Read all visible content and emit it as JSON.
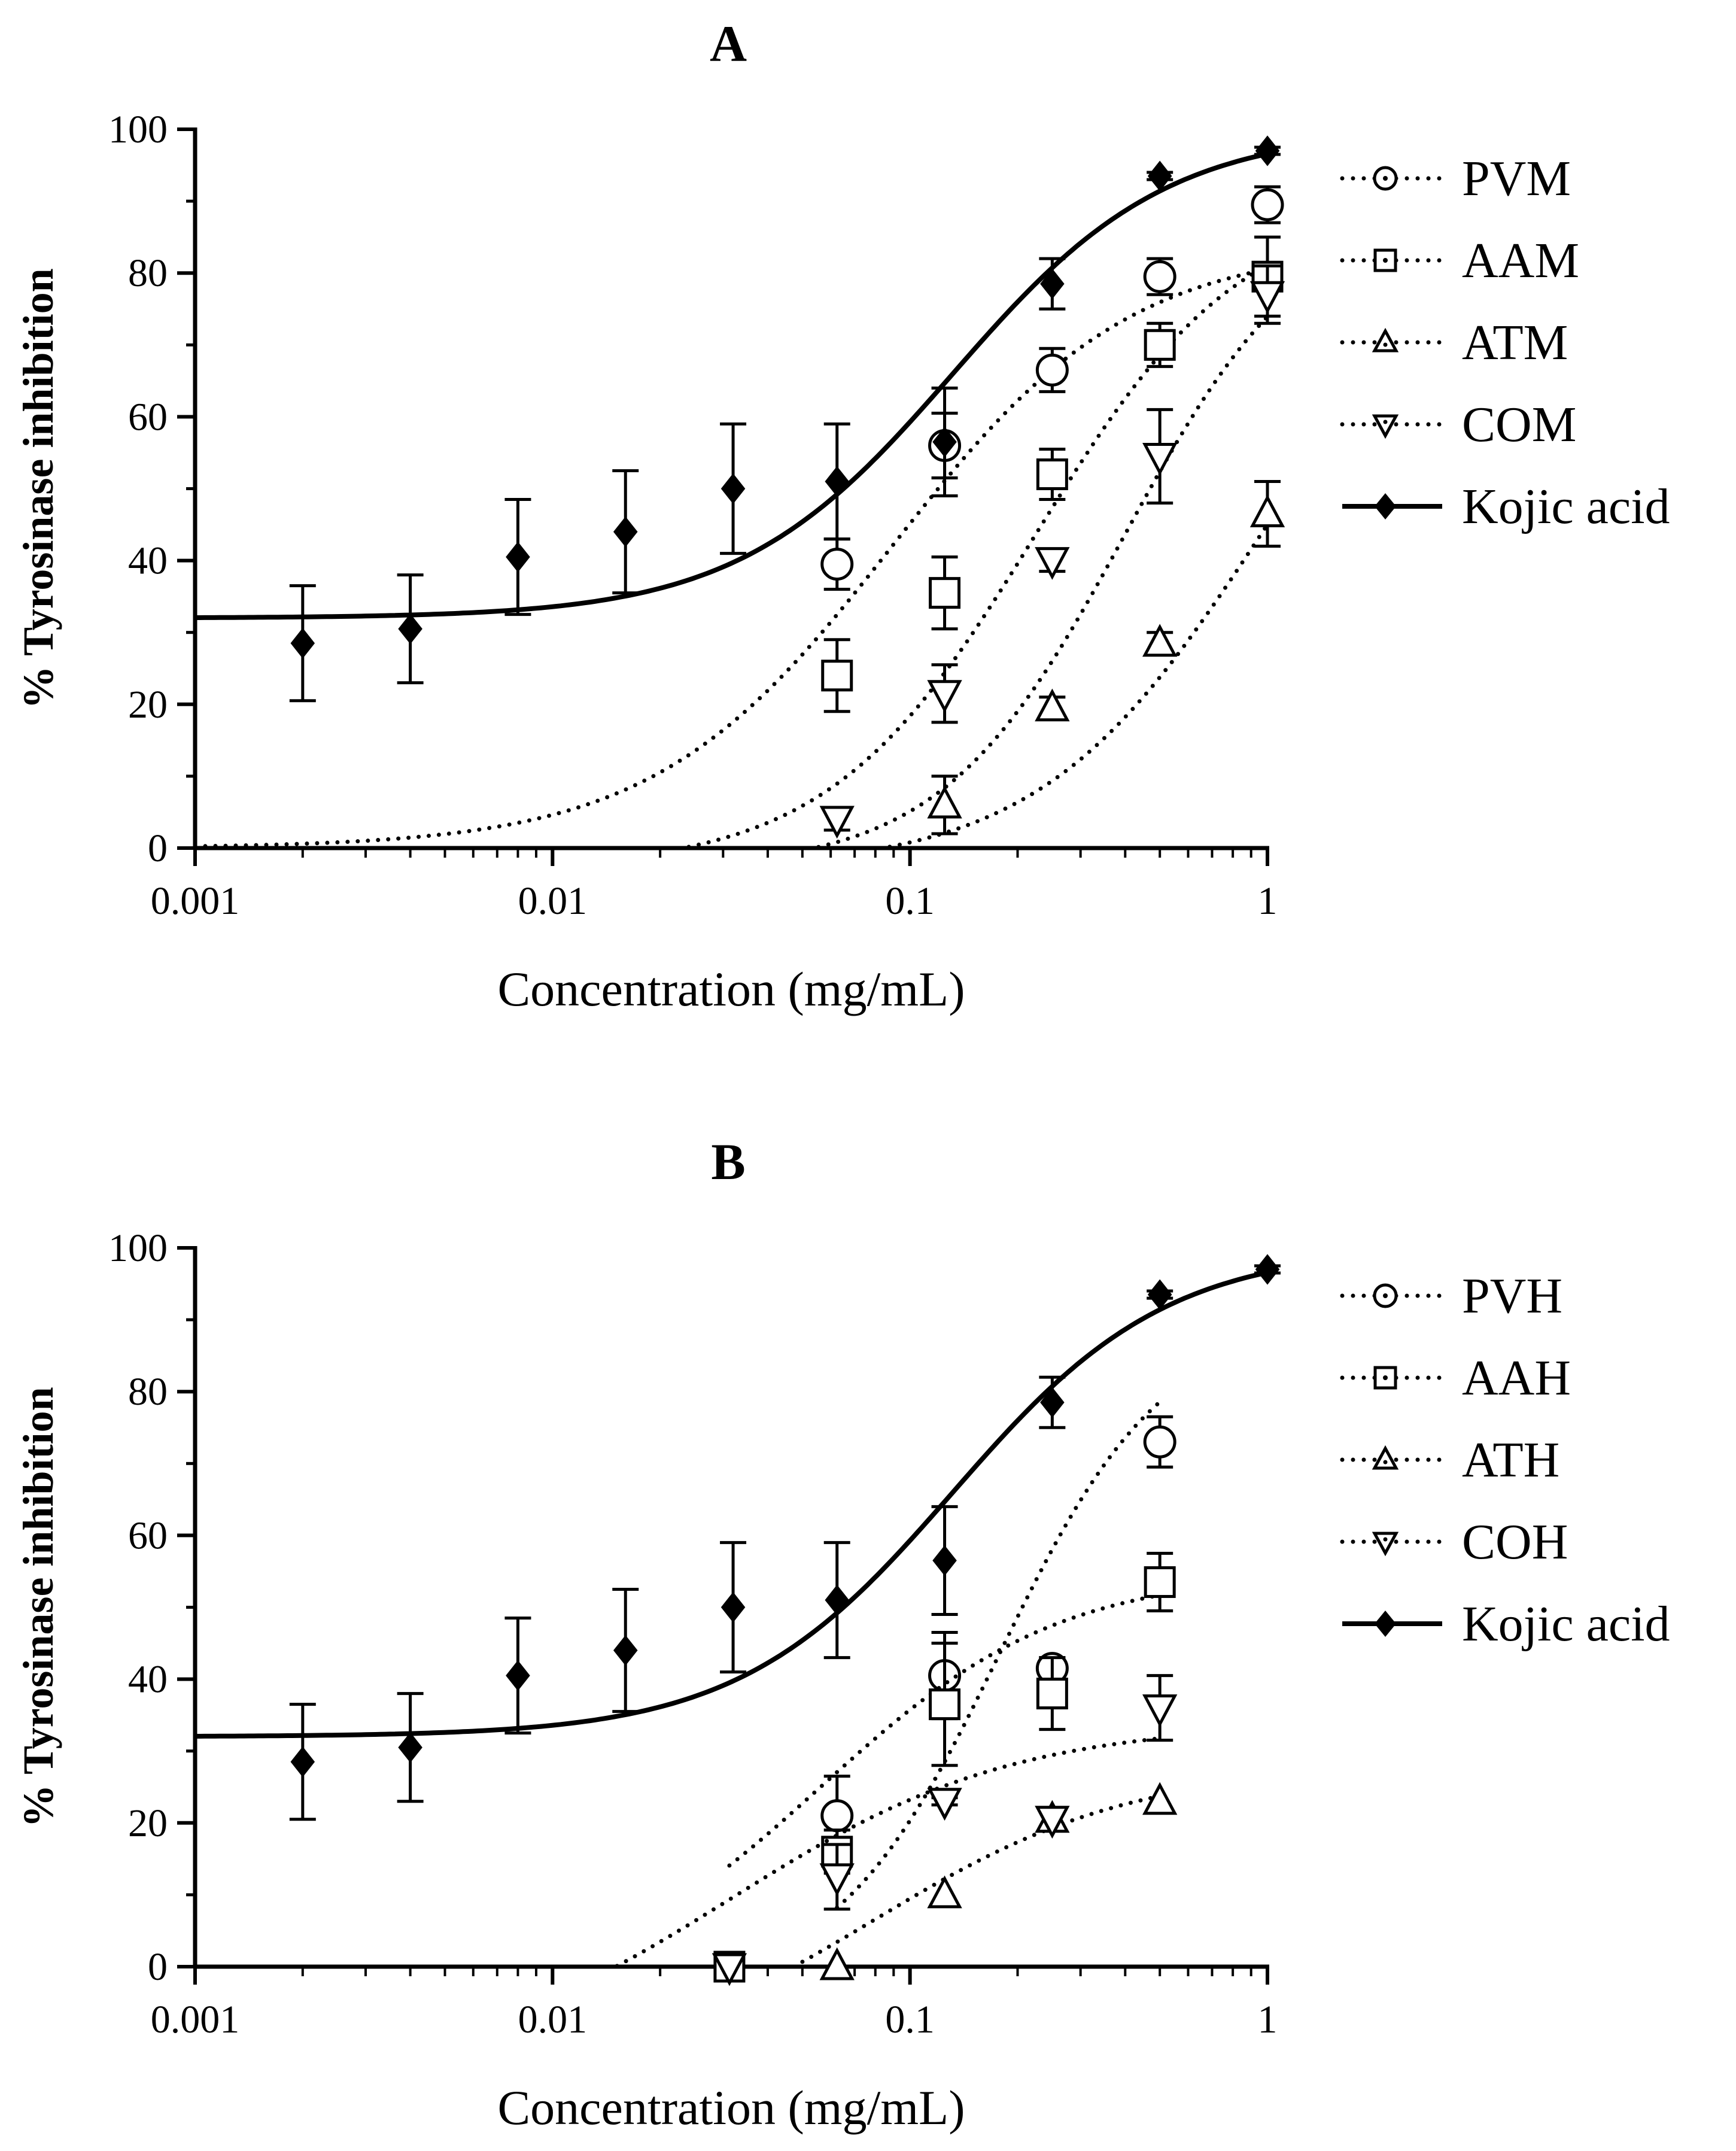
{
  "chart_data": [
    {
      "type": "scatter",
      "panel": "A",
      "title": "A",
      "xlabel": "Concentration (mg/mL)",
      "ylabel": "% Tyrosinase inhibition",
      "xscale": "log",
      "xlim": [
        0.001,
        1
      ],
      "ylim": [
        0,
        100
      ],
      "xticks": [
        "0.001",
        "0.01",
        "0.1",
        "1"
      ],
      "yticks": [
        "0",
        "20",
        "40",
        "60",
        "80",
        "100"
      ],
      "legend_position": "right",
      "series": [
        {
          "name": "PVM",
          "marker": "circle",
          "line": "dotted",
          "points": [
            {
              "x": 0.0625,
              "y": 39.5,
              "err": 3.5
            },
            {
              "x": 0.125,
              "y": 56,
              "err": 4.5
            },
            {
              "x": 0.25,
              "y": 66.5,
              "err": 3.0
            },
            {
              "x": 0.5,
              "y": 79.5,
              "err": 2.5
            },
            {
              "x": 1,
              "y": 89.5,
              "err": 2.5
            }
          ],
          "fit": {
            "bottom": 0,
            "top": 84,
            "logec50": -1.05,
            "hill": 1.3,
            "xmin": 0.001,
            "xmax": 1
          }
        },
        {
          "name": "AAM",
          "marker": "square",
          "line": "dotted",
          "points": [
            {
              "x": 0.0625,
              "y": 24,
              "err": 5.0
            },
            {
              "x": 0.125,
              "y": 35.5,
              "err": 5.0
            },
            {
              "x": 0.25,
              "y": 52,
              "err": 3.5
            },
            {
              "x": 0.5,
              "y": 70,
              "err": 3.0
            },
            {
              "x": 1,
              "y": 79.5,
              "err": 5.5
            }
          ],
          "fit": {
            "bottom": -3,
            "top": 90,
            "logec50": -0.65,
            "hill": 1.5,
            "xmin": 0.0125,
            "xmax": 1
          }
        },
        {
          "name": "ATM",
          "marker": "triangle-up",
          "line": "dotted",
          "points": [
            {
              "x": 0.125,
              "y": 6,
              "err": 4.0
            },
            {
              "x": 0.25,
              "y": 19.5,
              "err": 1.5
            },
            {
              "x": 0.5,
              "y": 28.5,
              "err": 1.5
            },
            {
              "x": 1,
              "y": 46.5,
              "err": 4.5
            }
          ],
          "fit": {
            "bottom": -3,
            "top": 90,
            "logec50": -0.02,
            "hill": 1.4,
            "xmin": 0.04,
            "xmax": 1
          }
        },
        {
          "name": "COM",
          "marker": "triangle-down",
          "line": "dotted",
          "points": [
            {
              "x": 0.0625,
              "y": 4,
              "err": 1.5
            },
            {
              "x": 0.125,
              "y": 21.5,
              "err": 4.0
            },
            {
              "x": 0.25,
              "y": 40,
              "err": 1.5
            },
            {
              "x": 0.5,
              "y": 54.5,
              "err": 6.5
            },
            {
              "x": 1,
              "y": 77,
              "err": 4.0
            }
          ],
          "fit": {
            "bottom": -3,
            "top": 90,
            "logec50": -0.4,
            "hill": 1.7,
            "xmin": 0.04,
            "xmax": 1
          }
        },
        {
          "name": "Kojic acid",
          "marker": "diamond-filled",
          "line": "solid",
          "points": [
            {
              "x": 0.002,
              "y": 28.5,
              "err": 8.0
            },
            {
              "x": 0.004,
              "y": 30.5,
              "err": 7.5
            },
            {
              "x": 0.008,
              "y": 40.5,
              "err": 8.0
            },
            {
              "x": 0.016,
              "y": 44,
              "err": 8.5
            },
            {
              "x": 0.032,
              "y": 50,
              "err": 9.0
            },
            {
              "x": 0.0625,
              "y": 51,
              "err": 8.0
            },
            {
              "x": 0.125,
              "y": 56.5,
              "err": 7.5
            },
            {
              "x": 0.25,
              "y": 78.5,
              "err": 3.5
            },
            {
              "x": 0.5,
              "y": 93.5,
              "err": 0.5
            },
            {
              "x": 1,
              "y": 97,
              "err": 0.5
            }
          ],
          "fit": {
            "bottom": 32,
            "top": 100,
            "logec50": -0.88,
            "hill": 1.45,
            "xmin": 0.001,
            "xmax": 1
          }
        }
      ]
    },
    {
      "type": "scatter",
      "panel": "B",
      "title": "B",
      "xlabel": "Concentration (mg/mL)",
      "ylabel": "% Tyrosinase inhibition",
      "xscale": "log",
      "xlim": [
        0.001,
        1
      ],
      "ylim": [
        0,
        100
      ],
      "xticks": [
        "0.001",
        "0.01",
        "0.1",
        "1"
      ],
      "yticks": [
        "0",
        "20",
        "40",
        "60",
        "80",
        "100"
      ],
      "legend_position": "right",
      "series": [
        {
          "name": "PVH",
          "marker": "circle",
          "line": "dotted",
          "points": [
            {
              "x": 0.0625,
              "y": 21,
              "err": 5.5
            },
            {
              "x": 0.125,
              "y": 40.5,
              "err": 6.0
            },
            {
              "x": 0.25,
              "y": 41.5,
              "err": 1.5
            },
            {
              "x": 0.5,
              "y": 73,
              "err": 3.5
            }
          ],
          "fit": {
            "bottom": -3,
            "top": 90,
            "logec50": -0.75,
            "hill": 1.9,
            "xmin": 0.0625,
            "xmax": 0.5
          }
        },
        {
          "name": "AAH",
          "marker": "square",
          "line": "dotted",
          "points": [
            {
              "x": 0.03125,
              "y": 0,
              "err": 0
            },
            {
              "x": 0.0625,
              "y": 16,
              "err": 3.0
            },
            {
              "x": 0.125,
              "y": 36.5,
              "err": 8.5
            },
            {
              "x": 0.25,
              "y": 38,
              "err": 5.0
            },
            {
              "x": 0.5,
              "y": 53.5,
              "err": 4.0
            }
          ],
          "fit": {
            "bottom": -5,
            "top": 55,
            "logec50": -1.25,
            "hill": 1.3,
            "xmin": 0.03125,
            "xmax": 0.5
          }
        },
        {
          "name": "ATH",
          "marker": "triangle-up",
          "line": "dotted",
          "points": [
            {
              "x": 0.0625,
              "y": 0,
              "err": 0
            },
            {
              "x": 0.125,
              "y": 10,
              "err": 0
            },
            {
              "x": 0.25,
              "y": 20.5,
              "err": 0
            },
            {
              "x": 0.5,
              "y": 23,
              "err": 0
            }
          ],
          "fit": {
            "bottom": -15,
            "top": 28,
            "logec50": -1.1,
            "hill": 1.2,
            "xmin": 0.05,
            "xmax": 0.5
          }
        },
        {
          "name": "COH",
          "marker": "triangle-down",
          "line": "dotted",
          "points": [
            {
              "x": 0.03125,
              "y": 0,
              "err": 0
            },
            {
              "x": 0.0625,
              "y": 12.5,
              "err": 4.5
            },
            {
              "x": 0.125,
              "y": 23,
              "err": 0.5
            },
            {
              "x": 0.25,
              "y": 20.5,
              "err": 0
            },
            {
              "x": 0.5,
              "y": 36,
              "err": 4.5
            }
          ],
          "fit": {
            "bottom": -15,
            "top": 34,
            "logec50": -1.5,
            "hill": 1.1,
            "xmin": 0.0142,
            "xmax": 0.5
          }
        },
        {
          "name": "Kojic acid",
          "marker": "diamond-filled",
          "line": "solid",
          "points": [
            {
              "x": 0.002,
              "y": 28.5,
              "err": 8.0
            },
            {
              "x": 0.004,
              "y": 30.5,
              "err": 7.5
            },
            {
              "x": 0.008,
              "y": 40.5,
              "err": 8.0
            },
            {
              "x": 0.016,
              "y": 44,
              "err": 8.5
            },
            {
              "x": 0.032,
              "y": 50,
              "err": 9.0
            },
            {
              "x": 0.0625,
              "y": 51,
              "err": 8.0
            },
            {
              "x": 0.125,
              "y": 56.5,
              "err": 7.5
            },
            {
              "x": 0.25,
              "y": 78.5,
              "err": 3.5
            },
            {
              "x": 0.5,
              "y": 93.5,
              "err": 0.5
            },
            {
              "x": 1,
              "y": 97,
              "err": 0.5
            }
          ],
          "fit": {
            "bottom": 32,
            "top": 100,
            "logec50": -0.88,
            "hill": 1.45,
            "xmin": 0.001,
            "xmax": 1
          }
        }
      ]
    }
  ]
}
